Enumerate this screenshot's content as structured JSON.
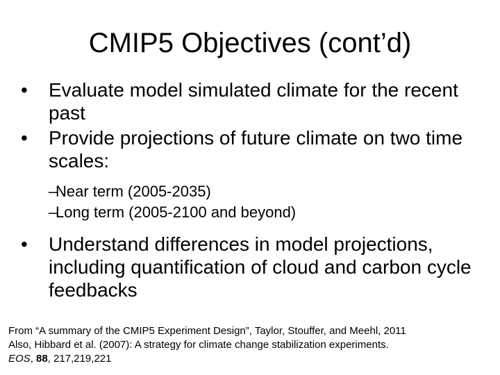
{
  "slide": {
    "title": "CMIP5 Objectives (cont’d)",
    "bullets": [
      {
        "marker": "•",
        "text": "Evaluate model simulated climate for the recent past"
      },
      {
        "marker": "•",
        "text": "Provide projections of future climate on two time scales:"
      },
      {
        "marker": "•",
        "text": "Understand differences in model projections, including quantification of cloud and carbon cycle feedbacks"
      }
    ],
    "sub_bullets": [
      {
        "marker": "–",
        "text": "Near term (2005-2035)"
      },
      {
        "marker": "–",
        "text": "Long term (2005-2100 and beyond)"
      }
    ],
    "footer": {
      "line1": "From “A summary of the CMIP5 Experiment Design”, Taylor, Stouffer, and Meehl, 2011",
      "line2": "Also, Hibbard et al. (2007): A strategy for climate change stabilization experiments.",
      "journal": "EOS",
      "volume": "88",
      "pages": ", 217,219,221",
      "sep": ", "
    }
  }
}
